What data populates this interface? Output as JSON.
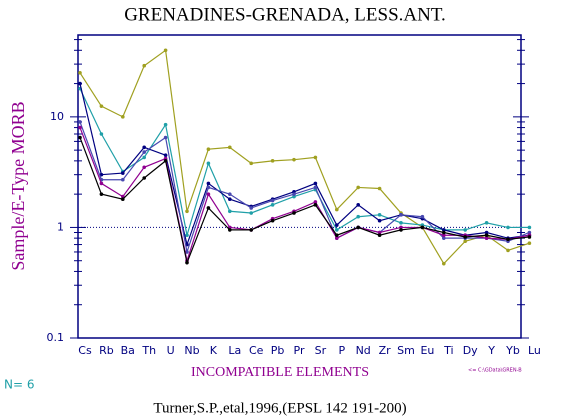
{
  "chart_data": {
    "type": "line",
    "title": "GRENADINES-GRENADA, LESS.ANT.",
    "y_label": "Sample/E-Type MORB",
    "x_label": "INCOMPATIBLE ELEMENTS",
    "count_note": "N= 6",
    "file_note": "<= C:\\GData\\GREN-B",
    "citation": "Turner,S.P.,etal,1996,(EPSL 142 191-200)",
    "log_y": true,
    "reference": 1,
    "categories": [
      "Cs",
      "Rb",
      "Ba",
      "Th",
      "U",
      "Nb",
      "K",
      "La",
      "Ce",
      "Pb",
      "Pr",
      "Sr",
      "P",
      "Nd",
      "Zr",
      "Sm",
      "Eu",
      "Ti",
      "Dy",
      "Y",
      "Yb",
      "Lu"
    ],
    "ylim": [
      0.1,
      55
    ],
    "yticks": [
      0.1,
      1,
      10
    ],
    "series": [
      {
        "color": "#a0a020",
        "values": [
          25,
          12.5,
          10,
          29,
          40,
          1.4,
          5.1,
          5.3,
          3.8,
          4.0,
          4.1,
          4.3,
          1.45,
          2.3,
          2.25,
          1.35,
          1.0,
          0.47,
          0.75,
          0.85,
          0.62,
          0.72
        ]
      },
      {
        "color": "#20a0a8",
        "values": [
          18,
          7,
          3.2,
          4.3,
          8.5,
          0.85,
          3.8,
          1.4,
          1.35,
          1.6,
          1.9,
          2.2,
          0.95,
          1.25,
          1.3,
          1.1,
          1.05,
          0.95,
          0.95,
          1.1,
          1.0,
          1.0
        ]
      },
      {
        "color": "#000080",
        "values": [
          20,
          3,
          3.1,
          5.3,
          4.5,
          0.7,
          2.5,
          1.8,
          1.55,
          1.8,
          2.1,
          2.5,
          1.05,
          1.6,
          1.15,
          1.3,
          1.2,
          0.95,
          0.85,
          0.9,
          0.8,
          0.85
        ]
      },
      {
        "color": "#4848b0",
        "values": [
          9,
          2.7,
          2.7,
          4.8,
          6.5,
          0.6,
          2.3,
          2.0,
          1.5,
          1.75,
          2.0,
          2.3,
          0.8,
          1.0,
          0.9,
          1.3,
          1.25,
          0.8,
          0.8,
          0.8,
          0.75,
          0.9
        ]
      },
      {
        "color": "#900090",
        "values": [
          8,
          2.5,
          1.9,
          3.5,
          4.2,
          0.5,
          2.0,
          1.0,
          0.95,
          1.2,
          1.4,
          1.7,
          0.8,
          1.0,
          0.9,
          1.0,
          1.0,
          0.85,
          0.85,
          0.8,
          0.78,
          0.85
        ]
      },
      {
        "color": "#000000",
        "values": [
          6.5,
          2.0,
          1.8,
          2.8,
          4.0,
          0.48,
          1.5,
          0.95,
          0.95,
          1.15,
          1.35,
          1.6,
          0.85,
          1.0,
          0.85,
          0.95,
          1.0,
          0.9,
          0.82,
          0.85,
          0.78,
          0.82
        ]
      }
    ]
  }
}
